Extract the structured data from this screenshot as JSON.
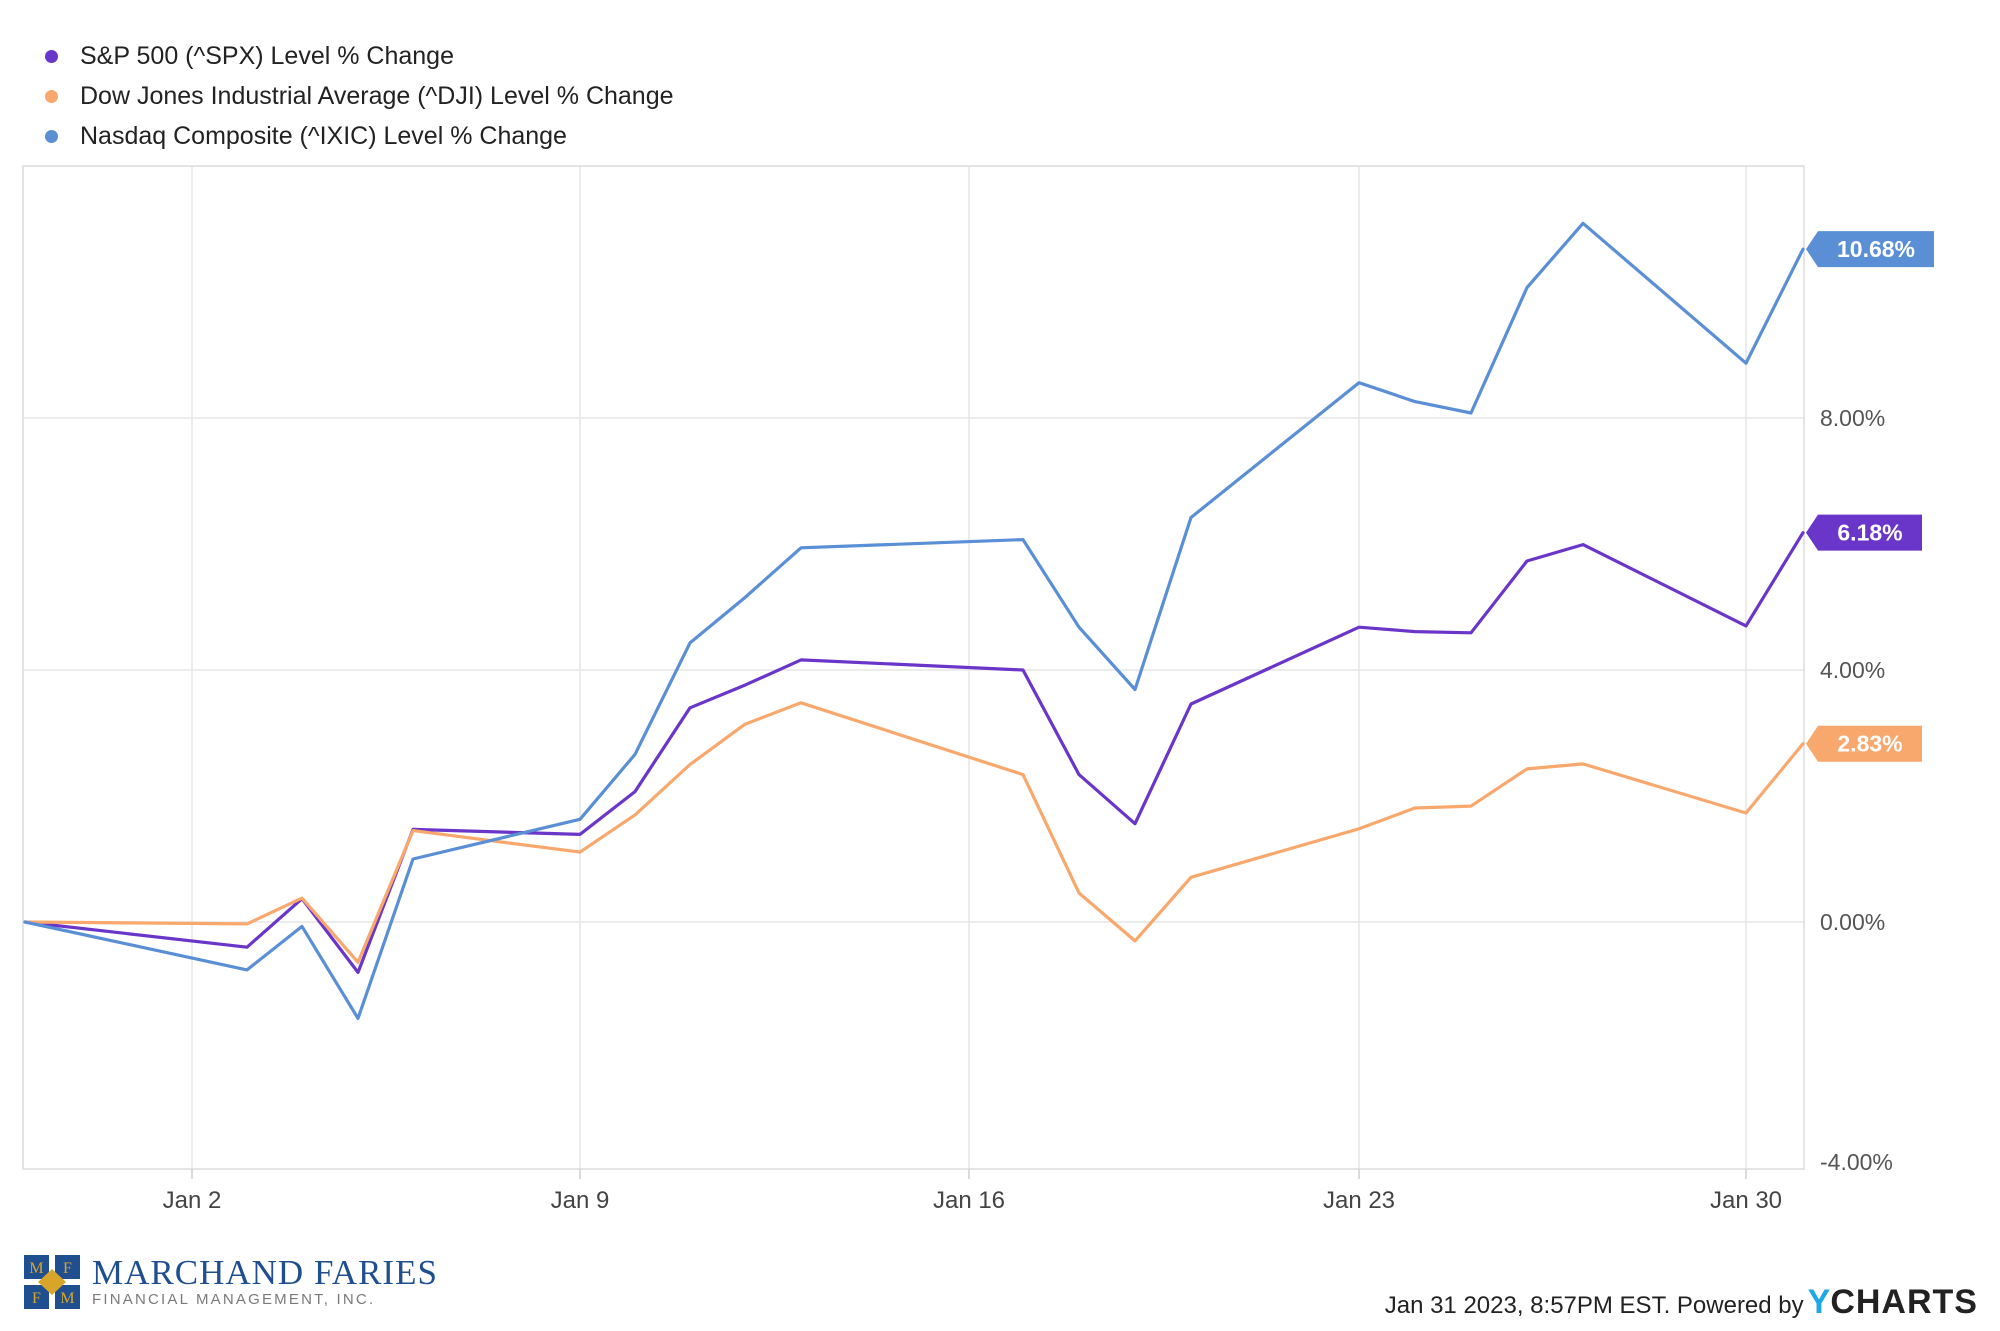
{
  "chart_data": {
    "type": "line",
    "x": [
      "Dec 30",
      "Jan 3",
      "Jan 4",
      "Jan 5",
      "Jan 6",
      "Jan 9",
      "Jan 10",
      "Jan 11",
      "Jan 12",
      "Jan 13",
      "Jan 17",
      "Jan 18",
      "Jan 19",
      "Jan 20",
      "Jan 23",
      "Jan 24",
      "Jan 25",
      "Jan 26",
      "Jan 27",
      "Jan 30",
      "Jan 31"
    ],
    "x_ticks": [
      "Jan 2",
      "Jan 9",
      "Jan 16",
      "Jan 23",
      "Jan 30"
    ],
    "y_ticks": [
      "8.00%",
      "4.00%",
      "0.00%",
      "-4.00%"
    ],
    "ylim": [
      -4,
      12
    ],
    "grid": true,
    "legend_position": "top-left",
    "series": [
      {
        "name": "S&P 500 (^SPX) Level % Change",
        "color": "#6a35c9",
        "end_label": "6.18%",
        "values": [
          0,
          -0.4,
          0.37,
          -0.8,
          1.47,
          1.39,
          2.07,
          3.4,
          3.76,
          4.16,
          4.0,
          2.34,
          1.56,
          3.46,
          4.68,
          4.61,
          4.59,
          5.73,
          5.99,
          4.7,
          6.18
        ]
      },
      {
        "name": "Dow Jones Industrial Average (^DJI) Level % Change",
        "color": "#f9a86d",
        "end_label": "2.83%",
        "values": [
          0,
          -0.03,
          0.38,
          -0.64,
          1.45,
          1.11,
          1.7,
          2.5,
          3.14,
          3.48,
          2.34,
          0.46,
          -0.3,
          0.71,
          1.48,
          1.81,
          1.84,
          2.43,
          2.51,
          1.73,
          2.83
        ]
      },
      {
        "name": "Nasdaq Composite (^IXIC) Level % Change",
        "color": "#5a8fd6",
        "end_label": "10.68%",
        "values": [
          0,
          -0.76,
          -0.07,
          -1.53,
          1.0,
          1.63,
          2.66,
          4.43,
          5.15,
          5.94,
          6.07,
          4.68,
          3.69,
          6.42,
          8.56,
          8.26,
          8.08,
          10.07,
          11.09,
          8.87,
          10.68
        ]
      }
    ]
  },
  "legend": {
    "items": [
      {
        "label": "S&P 500 (^SPX) Level % Change",
        "color": "#6a35c9"
      },
      {
        "label": "Dow Jones Industrial Average (^DJI) Level % Change",
        "color": "#f9a86d"
      },
      {
        "label": "Nasdaq Composite (^IXIC) Level % Change",
        "color": "#5a8fd6"
      }
    ]
  },
  "footer": {
    "logo_name": "MARCHAND FARIES",
    "logo_sub": "FINANCIAL MANAGEMENT, INC.",
    "logo_letters": [
      "M",
      "F",
      "F",
      "M"
    ],
    "timestamp": "Jan 31 2023, 8:57PM EST. Powered by",
    "brand_y": "Y",
    "brand_rest": "CHARTS"
  }
}
